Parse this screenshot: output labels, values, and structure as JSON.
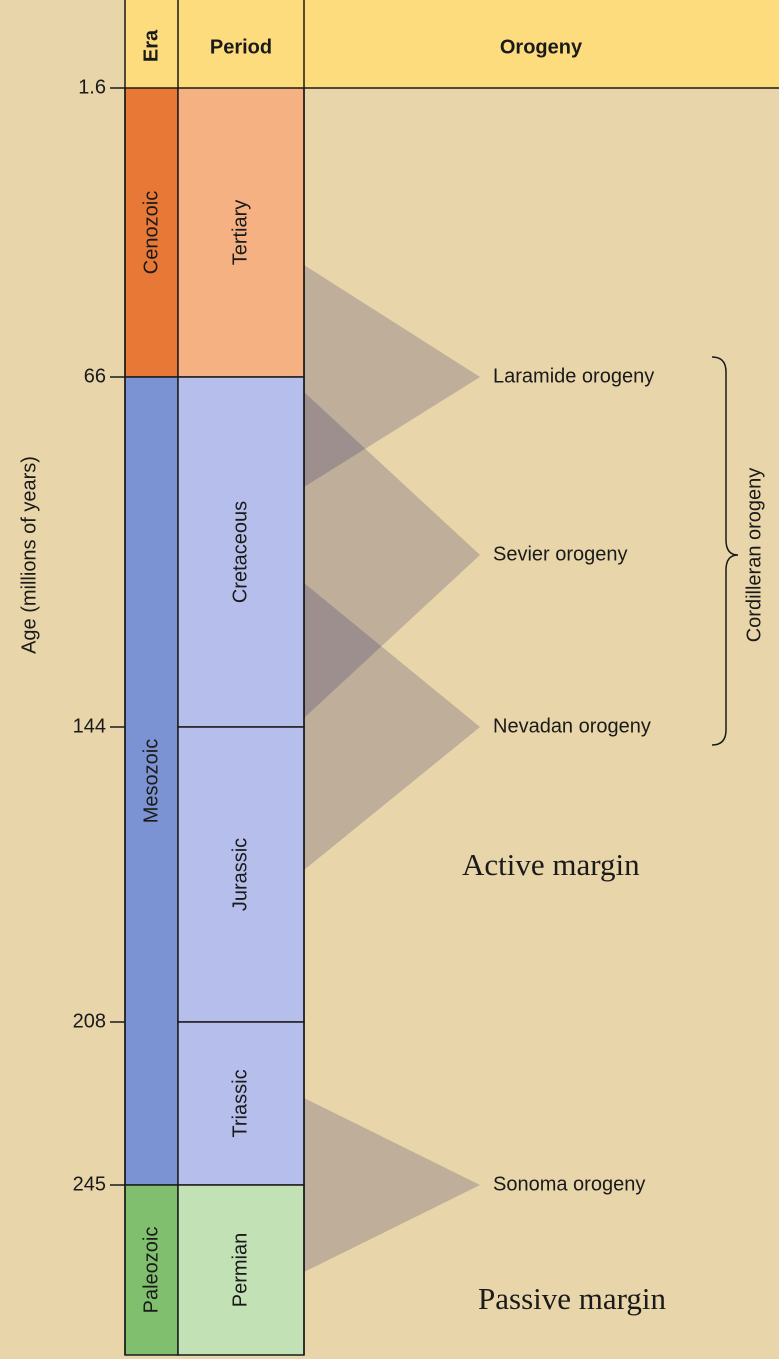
{
  "header": {
    "era": "Era",
    "period": "Period",
    "orogeny": "Orogeny"
  },
  "axis": {
    "label": "Age (millions of years)",
    "ticks": [
      1.6,
      66,
      144,
      208,
      245
    ]
  },
  "eras": [
    "Cenozoic",
    "Mesozoic",
    "Paleozoic"
  ],
  "periods": [
    "Tertiary",
    "Cretaceous",
    "Jurassic",
    "Triassic",
    "Permian"
  ],
  "orogenies": [
    "Laramide orogeny",
    "Sevier orogeny",
    "Nevadan orogeny",
    "Sonoma orogeny"
  ],
  "group": "Cordilleran orogeny",
  "margins": [
    "Active margin",
    "Passive margin"
  ]
}
